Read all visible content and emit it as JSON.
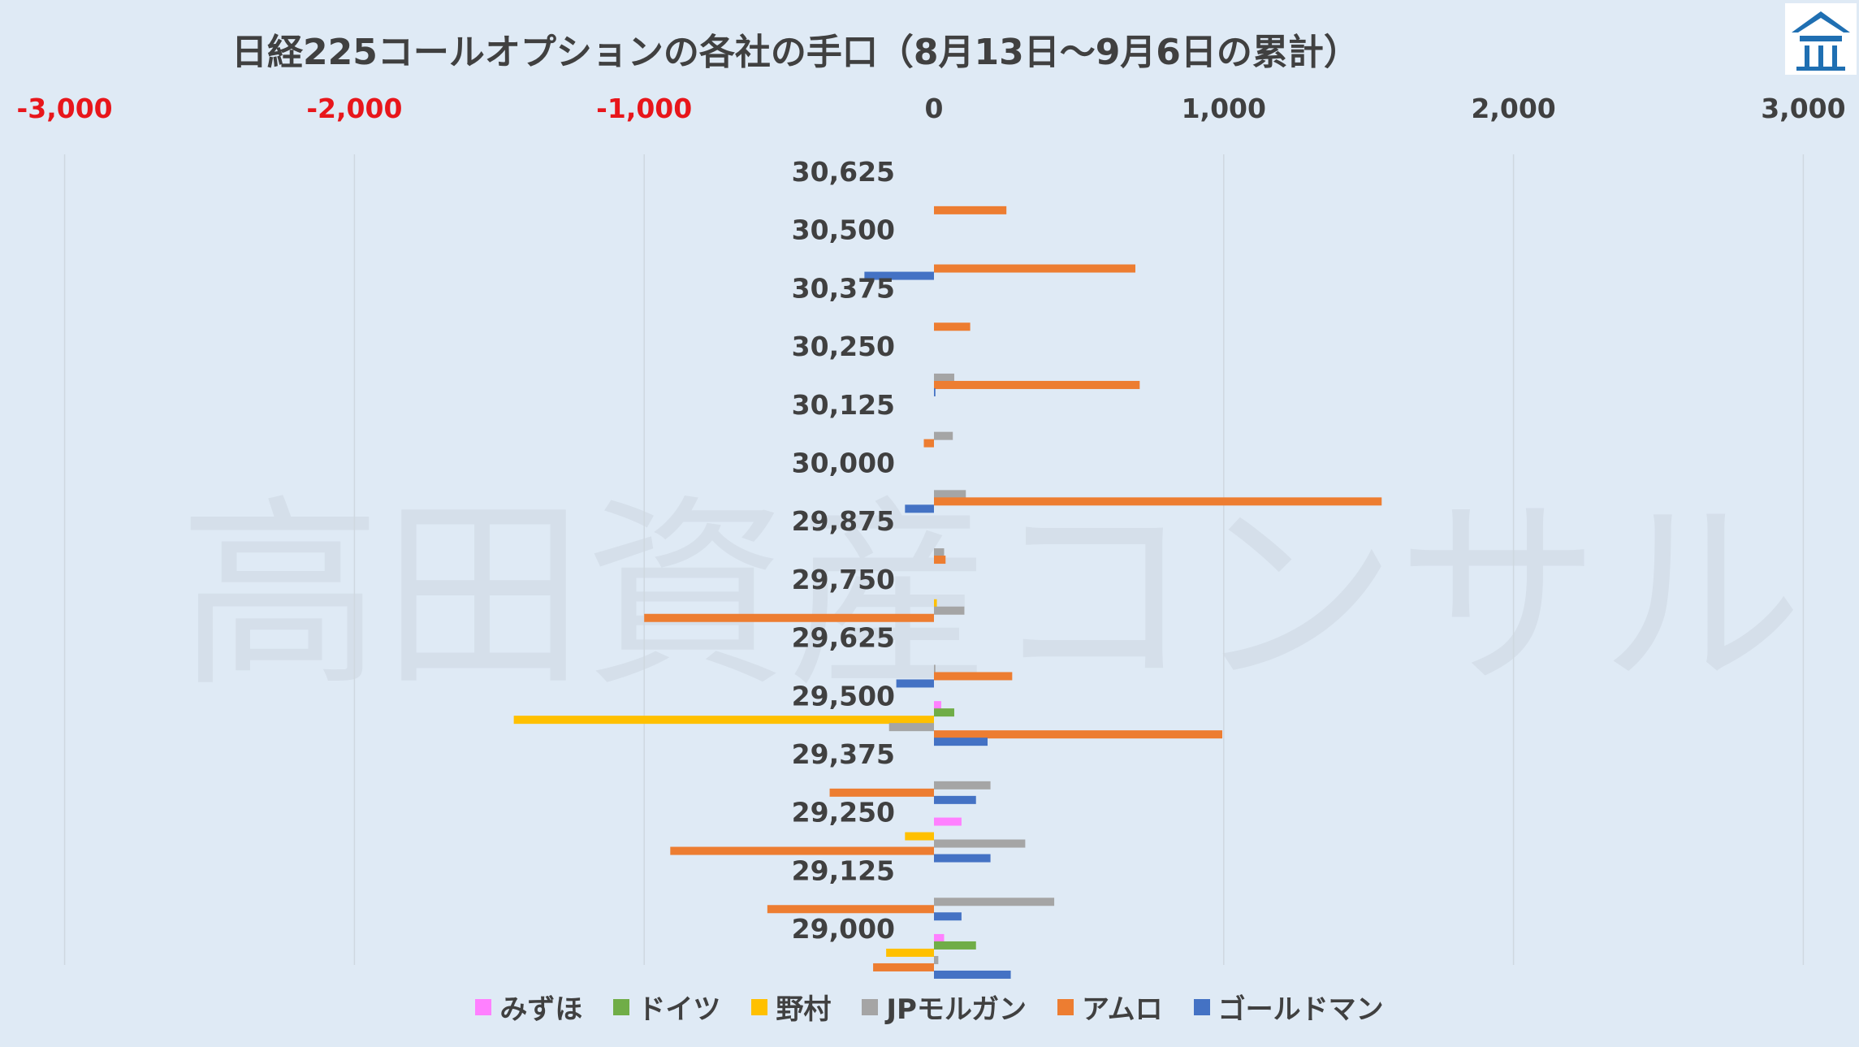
{
  "title": "日経225コールオプションの各社の手口（8月13日〜9月6日の累計）",
  "watermark": "高田資産コンサル",
  "chart_data": {
    "type": "bar",
    "orientation": "horizontal",
    "title": "日経225コールオプションの各社の手口（8月13日〜9月6日の累計）",
    "xlim": [
      -3000,
      3000
    ],
    "x_ticks": [
      {
        "value": -3000,
        "label": "-3,000"
      },
      {
        "value": -2000,
        "label": "-2,000"
      },
      {
        "value": -1000,
        "label": "-1,000"
      },
      {
        "value": 0,
        "label": "0"
      },
      {
        "value": 1000,
        "label": "1,000"
      },
      {
        "value": 2000,
        "label": "2,000"
      },
      {
        "value": 3000,
        "label": "3,000"
      }
    ],
    "negative_tick_color": "#e8161b",
    "positive_tick_color": "#404040",
    "grid": true,
    "legend_position": "bottom",
    "categories": [
      "30,625",
      "30,500",
      "30,375",
      "30,250",
      "30,125",
      "30,000",
      "29,875",
      "29,750",
      "29,625",
      "29,500",
      "29,375",
      "29,250",
      "29,125",
      "29,000"
    ],
    "series": [
      {
        "name": "みずほ",
        "color": "#ff80ff",
        "values": [
          0,
          0,
          0,
          0,
          0,
          0,
          0,
          0,
          0,
          25,
          0,
          95,
          0,
          35
        ]
      },
      {
        "name": "ドイツ",
        "color": "#70ad47",
        "values": [
          0,
          0,
          0,
          0,
          0,
          0,
          0,
          0,
          0,
          70,
          0,
          0,
          0,
          145
        ]
      },
      {
        "name": "野村",
        "color": "#ffc000",
        "values": [
          0,
          0,
          0,
          0,
          0,
          0,
          0,
          10,
          0,
          -1450,
          0,
          -100,
          0,
          -165
        ]
      },
      {
        "name": "JPモルガン",
        "color": "#a5a5a5",
        "values": [
          0,
          0,
          0,
          70,
          65,
          110,
          35,
          105,
          5,
          -155,
          195,
          315,
          415,
          15
        ]
      },
      {
        "name": "アムロ",
        "color": "#ed7d31",
        "values": [
          250,
          695,
          125,
          710,
          -35,
          1545,
          40,
          -1000,
          270,
          995,
          -360,
          -910,
          -575,
          -210
        ]
      },
      {
        "name": "ゴールドマン",
        "color": "#4472c4",
        "values": [
          0,
          -240,
          0,
          5,
          0,
          -100,
          0,
          0,
          -130,
          185,
          145,
          195,
          95,
          265
        ]
      }
    ]
  }
}
